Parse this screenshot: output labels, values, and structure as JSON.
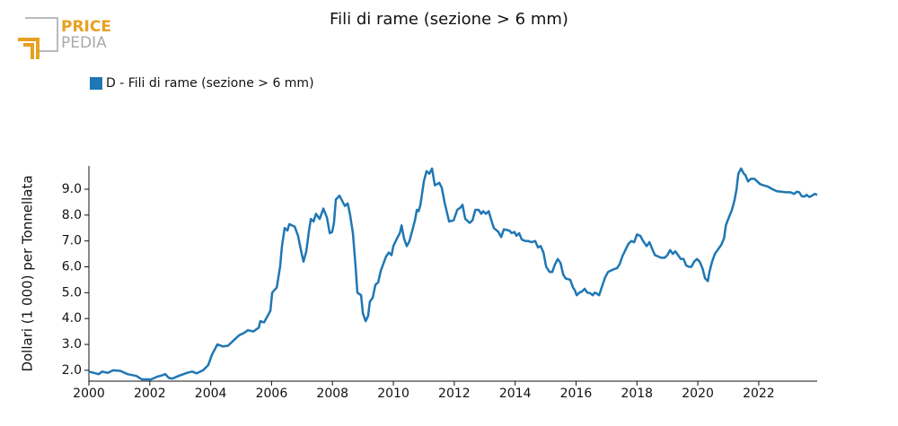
{
  "logo": {
    "top": "PRICE",
    "bottom": "PEDIA"
  },
  "chart_data": {
    "type": "line",
    "title": "Fili di rame (sezione > 6 mm)",
    "y_label": "Dollari (1 000) per Tonnellata",
    "legend_position": "top-left",
    "xlim": [
      2000,
      2023.92
    ],
    "xticks": [
      2000,
      2002,
      2004,
      2006,
      2008,
      2010,
      2012,
      2014,
      2016,
      2018,
      2020,
      2022
    ],
    "ylim": [
      1.58,
      9.9
    ],
    "yticks": [
      {
        "value": 2,
        "label": "2.0"
      },
      {
        "value": 3,
        "label": "3.0"
      },
      {
        "value": 4,
        "label": "4.0"
      },
      {
        "value": 5,
        "label": "5.0"
      },
      {
        "value": 6,
        "label": "6.0"
      },
      {
        "value": 7,
        "label": "7.0"
      },
      {
        "value": 8,
        "label": "8.0"
      },
      {
        "value": 9,
        "label": "9.0"
      }
    ],
    "x": [
      2000.0,
      2000.32,
      2000.44,
      2000.62,
      2000.8,
      2001.03,
      2001.27,
      2001.56,
      2001.74,
      2002.04,
      2002.24,
      2002.39,
      2002.51,
      2002.63,
      2002.74,
      2002.98,
      2003.22,
      2003.39,
      2003.54,
      2003.75,
      2003.92,
      2004.04,
      2004.22,
      2004.4,
      2004.57,
      2004.75,
      2004.93,
      2005.1,
      2005.22,
      2005.4,
      2005.58,
      2005.63,
      2005.75,
      2005.87,
      2005.96,
      2006.02,
      2006.17,
      2006.28,
      2006.34,
      2006.43,
      2006.52,
      2006.58,
      2006.76,
      2006.87,
      2006.99,
      2007.05,
      2007.14,
      2007.23,
      2007.29,
      2007.38,
      2007.46,
      2007.58,
      2007.7,
      2007.82,
      2007.91,
      2007.99,
      2008.05,
      2008.11,
      2008.23,
      2008.41,
      2008.5,
      2008.58,
      2008.67,
      2008.76,
      2008.82,
      2008.94,
      2009.0,
      2009.09,
      2009.17,
      2009.23,
      2009.32,
      2009.41,
      2009.5,
      2009.59,
      2009.76,
      2009.85,
      2009.94,
      2010.0,
      2010.12,
      2010.21,
      2010.27,
      2010.35,
      2010.44,
      2010.53,
      2010.62,
      2010.71,
      2010.77,
      2010.83,
      2010.89,
      2011.0,
      2011.09,
      2011.18,
      2011.27,
      2011.36,
      2011.51,
      2011.59,
      2011.68,
      2011.83,
      2011.98,
      2012.1,
      2012.21,
      2012.27,
      2012.36,
      2012.51,
      2012.6,
      2012.69,
      2012.8,
      2012.89,
      2012.95,
      2013.04,
      2013.13,
      2013.22,
      2013.3,
      2013.45,
      2013.54,
      2013.63,
      2013.81,
      2013.89,
      2013.98,
      2014.04,
      2014.13,
      2014.22,
      2014.34,
      2014.43,
      2014.54,
      2014.66,
      2014.75,
      2014.84,
      2014.93,
      2015.02,
      2015.13,
      2015.22,
      2015.31,
      2015.4,
      2015.49,
      2015.58,
      2015.66,
      2015.81,
      2015.9,
      2015.96,
      2016.02,
      2016.11,
      2016.2,
      2016.28,
      2016.37,
      2016.46,
      2016.55,
      2016.61,
      2016.7,
      2016.76,
      2016.84,
      2016.96,
      2017.05,
      2017.14,
      2017.23,
      2017.35,
      2017.43,
      2017.52,
      2017.64,
      2017.73,
      2017.82,
      2017.91,
      2018.0,
      2018.11,
      2018.2,
      2018.32,
      2018.41,
      2018.5,
      2018.59,
      2018.7,
      2018.79,
      2018.91,
      2019.0,
      2019.09,
      2019.18,
      2019.26,
      2019.35,
      2019.44,
      2019.53,
      2019.62,
      2019.71,
      2019.79,
      2019.88,
      2019.97,
      2020.06,
      2020.15,
      2020.24,
      2020.33,
      2020.38,
      2020.47,
      2020.56,
      2020.65,
      2020.77,
      2020.86,
      2020.92,
      2021.0,
      2021.12,
      2021.21,
      2021.27,
      2021.33,
      2021.42,
      2021.51,
      2021.56,
      2021.65,
      2021.74,
      2021.86,
      2021.95,
      2022.04,
      2022.15,
      2022.3,
      2022.45,
      2022.6,
      2022.74,
      2022.89,
      2023.04,
      2023.16,
      2023.25,
      2023.33,
      2023.42,
      2023.51,
      2023.57,
      2023.66,
      2023.75,
      2023.84,
      2023.92
    ],
    "series": [
      {
        "name": "D - Fili di rame (sezione > 6 mm)",
        "color": "#1f77b4",
        "values": [
          1.95,
          1.85,
          1.95,
          1.9,
          2.0,
          1.98,
          1.85,
          1.78,
          1.65,
          1.65,
          1.75,
          1.8,
          1.85,
          1.7,
          1.68,
          1.8,
          1.9,
          1.95,
          1.88,
          2.0,
          2.2,
          2.6,
          3.0,
          2.92,
          2.95,
          3.15,
          3.35,
          3.45,
          3.55,
          3.5,
          3.65,
          3.9,
          3.85,
          4.1,
          4.3,
          5.0,
          5.2,
          6.0,
          6.8,
          7.5,
          7.4,
          7.65,
          7.55,
          7.2,
          6.5,
          6.2,
          6.6,
          7.4,
          7.85,
          7.75,
          8.05,
          7.85,
          8.25,
          7.9,
          7.3,
          7.35,
          7.7,
          8.6,
          8.75,
          8.35,
          8.45,
          8.0,
          7.3,
          6.0,
          5.0,
          4.9,
          4.2,
          3.9,
          4.1,
          4.65,
          4.8,
          5.3,
          5.4,
          5.85,
          6.4,
          6.55,
          6.45,
          6.8,
          7.1,
          7.3,
          7.6,
          7.1,
          6.8,
          7.0,
          7.4,
          7.8,
          8.2,
          8.15,
          8.4,
          9.3,
          9.7,
          9.6,
          9.8,
          9.15,
          9.25,
          9.05,
          8.5,
          7.75,
          7.8,
          8.2,
          8.3,
          8.4,
          7.85,
          7.7,
          7.8,
          8.2,
          8.2,
          8.05,
          8.15,
          8.05,
          8.15,
          7.8,
          7.5,
          7.35,
          7.15,
          7.45,
          7.4,
          7.3,
          7.35,
          7.2,
          7.3,
          7.05,
          7.0,
          7.0,
          6.95,
          7.0,
          6.75,
          6.8,
          6.55,
          6.0,
          5.8,
          5.8,
          6.1,
          6.3,
          6.15,
          5.7,
          5.55,
          5.5,
          5.2,
          5.1,
          4.9,
          5.0,
          5.05,
          5.15,
          5.0,
          4.98,
          4.9,
          5.0,
          4.95,
          4.9,
          5.2,
          5.6,
          5.8,
          5.85,
          5.9,
          5.95,
          6.1,
          6.4,
          6.7,
          6.9,
          7.0,
          6.95,
          7.25,
          7.2,
          7.0,
          6.8,
          6.95,
          6.7,
          6.45,
          6.4,
          6.35,
          6.35,
          6.45,
          6.65,
          6.5,
          6.6,
          6.45,
          6.3,
          6.3,
          6.05,
          6.0,
          6.0,
          6.2,
          6.3,
          6.2,
          5.95,
          5.55,
          5.45,
          5.8,
          6.2,
          6.5,
          6.65,
          6.85,
          7.1,
          7.6,
          7.85,
          8.2,
          8.6,
          9.0,
          9.6,
          9.8,
          9.6,
          9.55,
          9.3,
          9.4,
          9.4,
          9.3,
          9.2,
          9.15,
          9.1,
          9.0,
          8.92,
          8.9,
          8.88,
          8.88,
          8.82,
          8.9,
          8.88,
          8.72,
          8.72,
          8.78,
          8.7,
          8.75,
          8.82,
          8.78
        ]
      }
    ]
  }
}
